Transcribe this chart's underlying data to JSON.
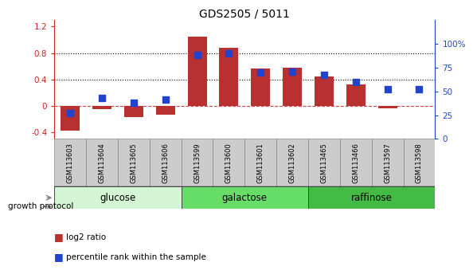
{
  "title": "GDS2505 / 5011",
  "samples": [
    "GSM113603",
    "GSM113604",
    "GSM113605",
    "GSM113606",
    "GSM113599",
    "GSM113600",
    "GSM113601",
    "GSM113602",
    "GSM113465",
    "GSM113466",
    "GSM113597",
    "GSM113598"
  ],
  "log2_ratio": [
    -0.38,
    -0.05,
    -0.17,
    -0.13,
    1.05,
    0.88,
    0.57,
    0.58,
    0.44,
    0.33,
    -0.04,
    0.0
  ],
  "percentile_rank": [
    27,
    43,
    38,
    41,
    88,
    90,
    70,
    71,
    67,
    60,
    52,
    52
  ],
  "bar_color": "#b83030",
  "dot_color": "#2244cc",
  "zero_line_color": "#cc4444",
  "groups": [
    {
      "label": "glucose",
      "start": 0,
      "end": 4,
      "color": "#d4f5d4"
    },
    {
      "label": "galactose",
      "start": 4,
      "end": 8,
      "color": "#66dd66"
    },
    {
      "label": "raffinose",
      "start": 8,
      "end": 12,
      "color": "#44bb44"
    }
  ],
  "ylim_left": [
    -0.5,
    1.3
  ],
  "ylim_right": [
    0,
    125
  ],
  "yticks_left": [
    -0.4,
    0.0,
    0.4,
    0.8,
    1.2
  ],
  "yticks_right": [
    0,
    25,
    50,
    75,
    100
  ],
  "ytick_labels_left": [
    "-0.4",
    "0",
    "0.4",
    "0.8",
    "1.2"
  ],
  "ytick_labels_right": [
    "0",
    "25",
    "50",
    "75",
    "100%"
  ],
  "hlines": [
    0.4,
    0.8
  ],
  "hline_style": "dotted",
  "hline_color": "black",
  "bg_color": "white",
  "plot_area_color": "white",
  "left_axis_color": "#cc2222",
  "right_axis_color": "#2244cc",
  "growth_protocol_label": "growth protocol",
  "legend_log2": "log2 ratio",
  "legend_percentile": "percentile rank within the sample",
  "bar_width": 0.6,
  "dot_size": 30,
  "tick_fontsize": 7.5,
  "sample_fontsize": 6,
  "label_fontsize": 8.5,
  "title_fontsize": 10,
  "sample_box_color": "#cccccc",
  "sample_box_edge": "#888888"
}
